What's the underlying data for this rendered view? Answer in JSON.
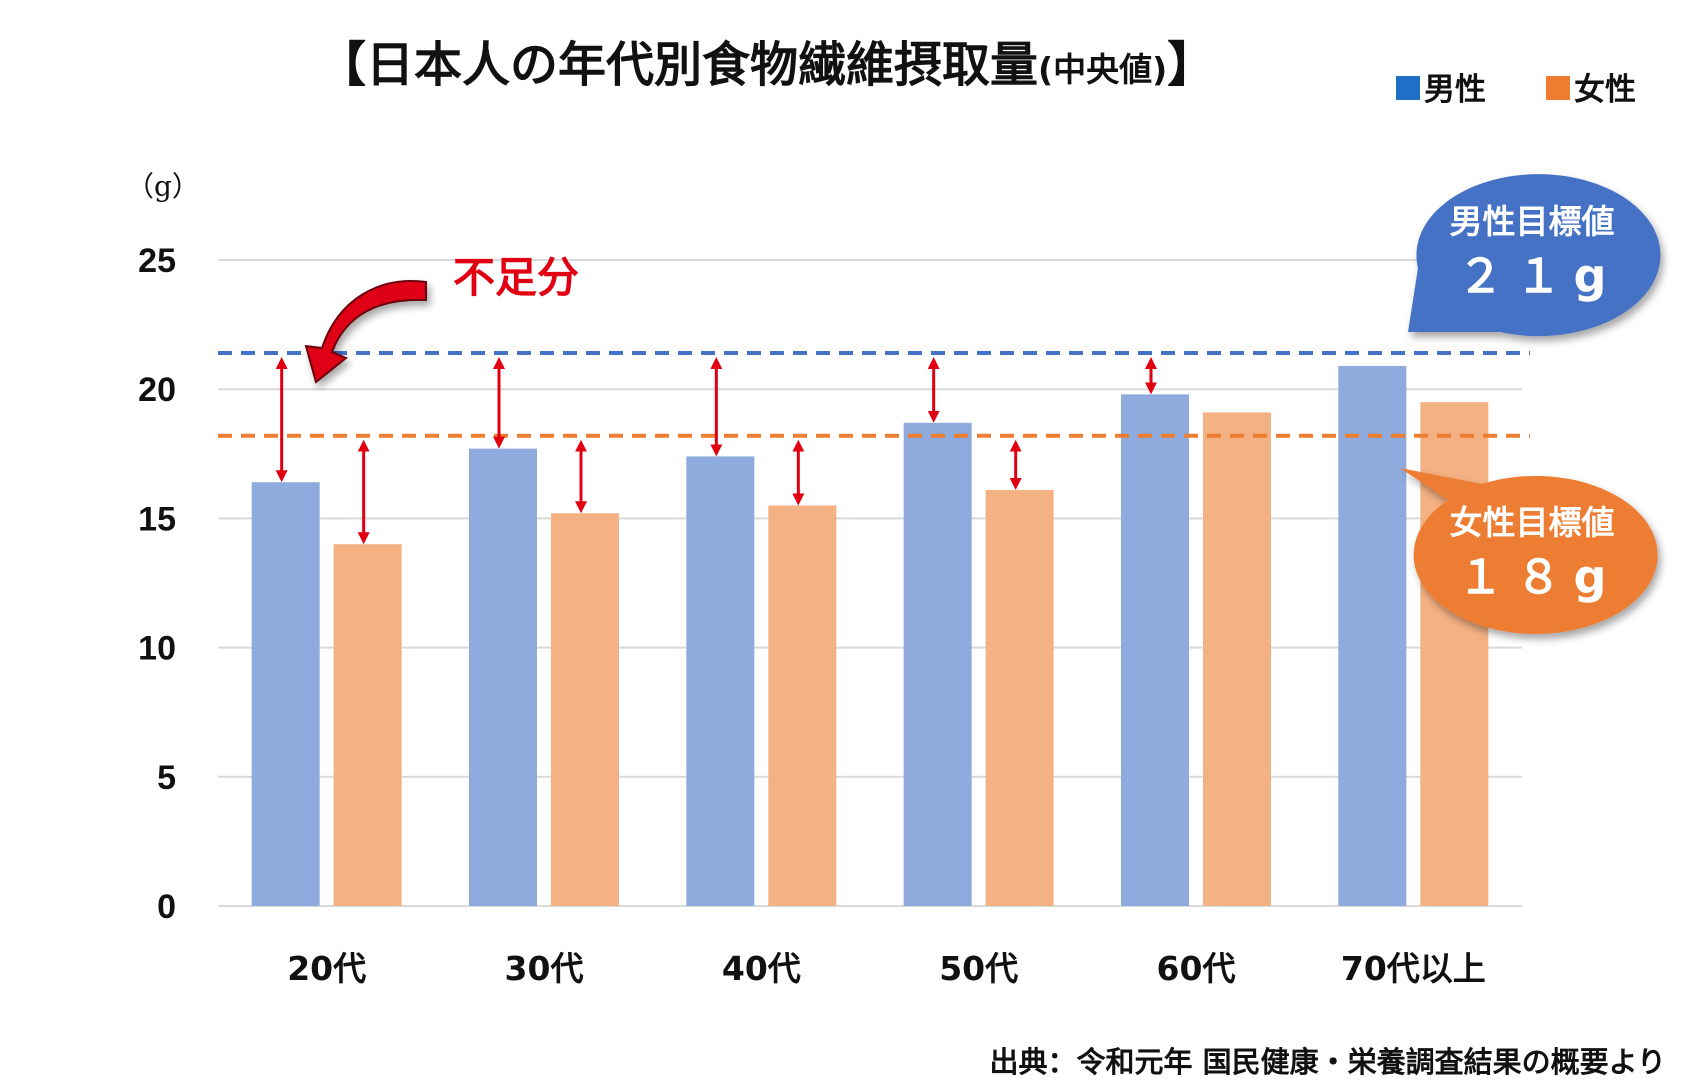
{
  "title": {
    "main": "【日本人の年代別食物繊維摂取量",
    "sub": "(中央値)",
    "close": "】"
  },
  "source_note": "出典：令和元年 国民健康・栄養調査結果の概要より",
  "shortfall_label": "不足分",
  "colors": {
    "male": "#8faadc",
    "female": "#f4b183",
    "male_legend": "#1f6fc5",
    "female_legend": "#ed7d31",
    "male_target_line": "#4472c4",
    "female_target_line": "#ed7d31",
    "male_callout": "#4472c4",
    "female_callout": "#ed7d31",
    "shortfall": "#e00012",
    "grid": "#d9d9d9"
  },
  "callouts": {
    "male": {
      "label": "男性目標値",
      "value": "２１g"
    },
    "female": {
      "label": "女性目標値",
      "value": "１８g"
    }
  },
  "chart_data": {
    "type": "bar",
    "title": "【日本人の年代別食物繊維摂取量(中央値)】",
    "ylabel": "（g）",
    "xlabel": "",
    "ylim": [
      0,
      25
    ],
    "yticks": [
      0,
      5,
      10,
      15,
      20,
      25
    ],
    "grid": true,
    "legend_position": "top-right",
    "categories": [
      "20代",
      "30代",
      "40代",
      "50代",
      "60代",
      "70代以上"
    ],
    "series": [
      {
        "name": "男性",
        "values": [
          16.4,
          17.7,
          17.4,
          18.7,
          19.8,
          20.9
        ]
      },
      {
        "name": "女性",
        "values": [
          14.0,
          15.2,
          15.5,
          16.1,
          19.1,
          19.5
        ]
      }
    ],
    "reference_lines": [
      {
        "name": "男性目標値",
        "value": 21.4
      },
      {
        "name": "女性目標値",
        "value": 18.2
      }
    ],
    "shortfall_arrows": [
      {
        "category": "20代",
        "series": "男性"
      },
      {
        "category": "20代",
        "series": "女性"
      },
      {
        "category": "30代",
        "series": "男性"
      },
      {
        "category": "30代",
        "series": "女性"
      },
      {
        "category": "40代",
        "series": "男性"
      },
      {
        "category": "40代",
        "series": "女性"
      },
      {
        "category": "50代",
        "series": "男性"
      },
      {
        "category": "50代",
        "series": "女性"
      },
      {
        "category": "60代",
        "series": "男性"
      }
    ]
  }
}
